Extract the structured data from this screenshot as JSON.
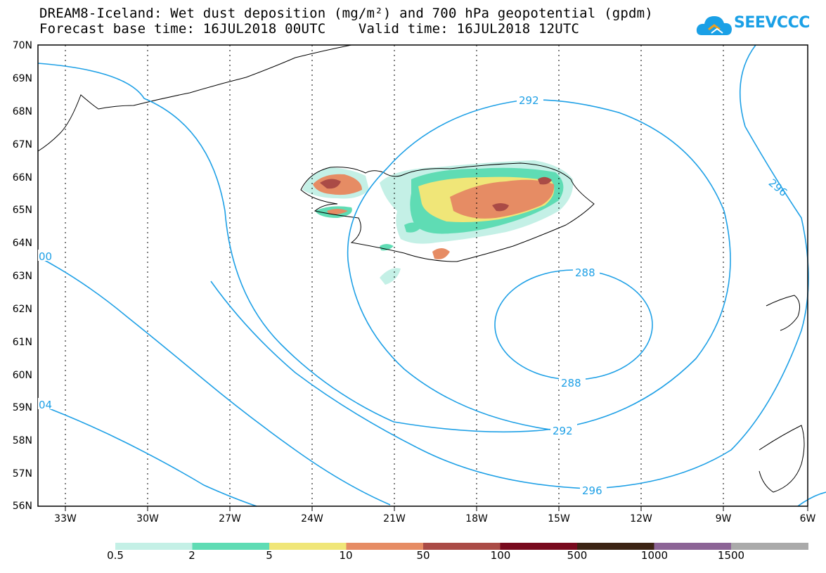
{
  "header": {
    "title_line1": "DREAM8-Iceland: Wet dust deposition (mg/m²) and 700 hPa geopotential (gpdm)",
    "title_line2": "Forecast base time: 16JUL2018 00UTC    Valid time: 16JUL2018 12UTC",
    "logo_text": "SEEVCCC"
  },
  "map": {
    "lat_labels": [
      "70N",
      "69N",
      "68N",
      "67N",
      "66N",
      "65N",
      "64N",
      "63N",
      "62N",
      "61N",
      "60N",
      "59N",
      "58N",
      "57N",
      "56N"
    ],
    "lon_labels": [
      "33W",
      "30W",
      "27W",
      "24W",
      "21W",
      "18W",
      "15W",
      "12W",
      "9W",
      "6W"
    ],
    "contour_labels": {
      "c292_top": "292",
      "c296_right": "296",
      "c288_top": "288",
      "c288_bottom": "288",
      "c292_bottom": "292",
      "c296_bottom": "296",
      "c300_left": "00",
      "c304_left": "04"
    },
    "contour_color": "#1ea0e6"
  },
  "colorbar": {
    "labels": [
      "0.5",
      "2",
      "5",
      "10",
      "50",
      "100",
      "500",
      "1000",
      "1500"
    ],
    "colors": [
      "#c4f0e6",
      "#5fdcb4",
      "#f0e678",
      "#e68c64",
      "#aa4b46",
      "#780a1e",
      "#3c2314",
      "#8c6496",
      "#aaaaaa"
    ]
  }
}
